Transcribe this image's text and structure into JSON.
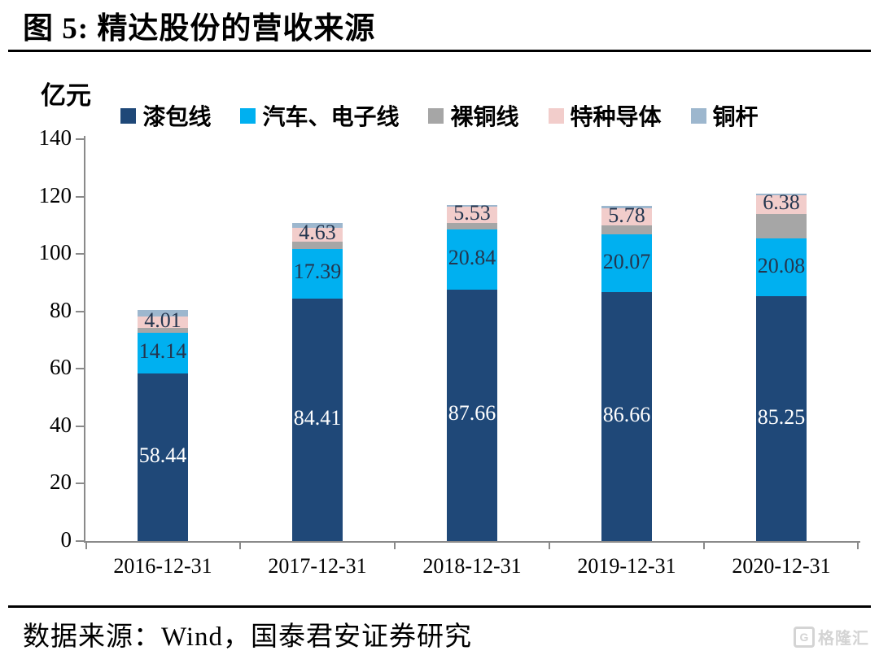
{
  "page": {
    "title": "图 5:  精达股份的营收来源",
    "footer_source": "数据来源：Wind，国泰君安证券研究",
    "watermark": "格隆汇"
  },
  "chart_data": {
    "type": "bar",
    "stacked": true,
    "title": "精达股份的营收来源",
    "unit_label": "亿元",
    "xlabel": "",
    "ylabel": "亿元",
    "ylim": [
      0,
      140
    ],
    "yticks": [
      0,
      20,
      40,
      60,
      80,
      100,
      120,
      140
    ],
    "grid": false,
    "legend_position": "top",
    "categories": [
      "2016-12-31",
      "2017-12-31",
      "2018-12-31",
      "2019-12-31",
      "2020-12-31"
    ],
    "series": [
      {
        "name": "漆包线",
        "color": "#1F4878",
        "label_color": "#FFFFFF",
        "show_labels": true,
        "labeled": true,
        "values": [
          58.44,
          84.41,
          87.66,
          86.66,
          85.25
        ]
      },
      {
        "name": "汽车、电子线",
        "color": "#00B0F0",
        "label_color": "#24364F",
        "show_labels": true,
        "labeled": true,
        "values": [
          14.14,
          17.39,
          20.84,
          20.07,
          20.08
        ]
      },
      {
        "name": "裸铜线",
        "color": "#A6A6A6",
        "label_color": "#24364F",
        "show_labels": false,
        "labeled": false,
        "values": [
          1.6,
          2.6,
          2.4,
          3.3,
          8.7
        ]
      },
      {
        "name": "特种导体",
        "color": "#F2CDCB",
        "label_color": "#24364F",
        "show_labels": true,
        "labeled": true,
        "values": [
          4.01,
          4.63,
          5.53,
          5.78,
          6.38
        ]
      },
      {
        "name": "铜杆",
        "color": "#9DB7CE",
        "label_color": "#24364F",
        "show_labels": false,
        "labeled": false,
        "values": [
          2.3,
          1.9,
          0.5,
          0.9,
          0.7
        ]
      }
    ]
  }
}
